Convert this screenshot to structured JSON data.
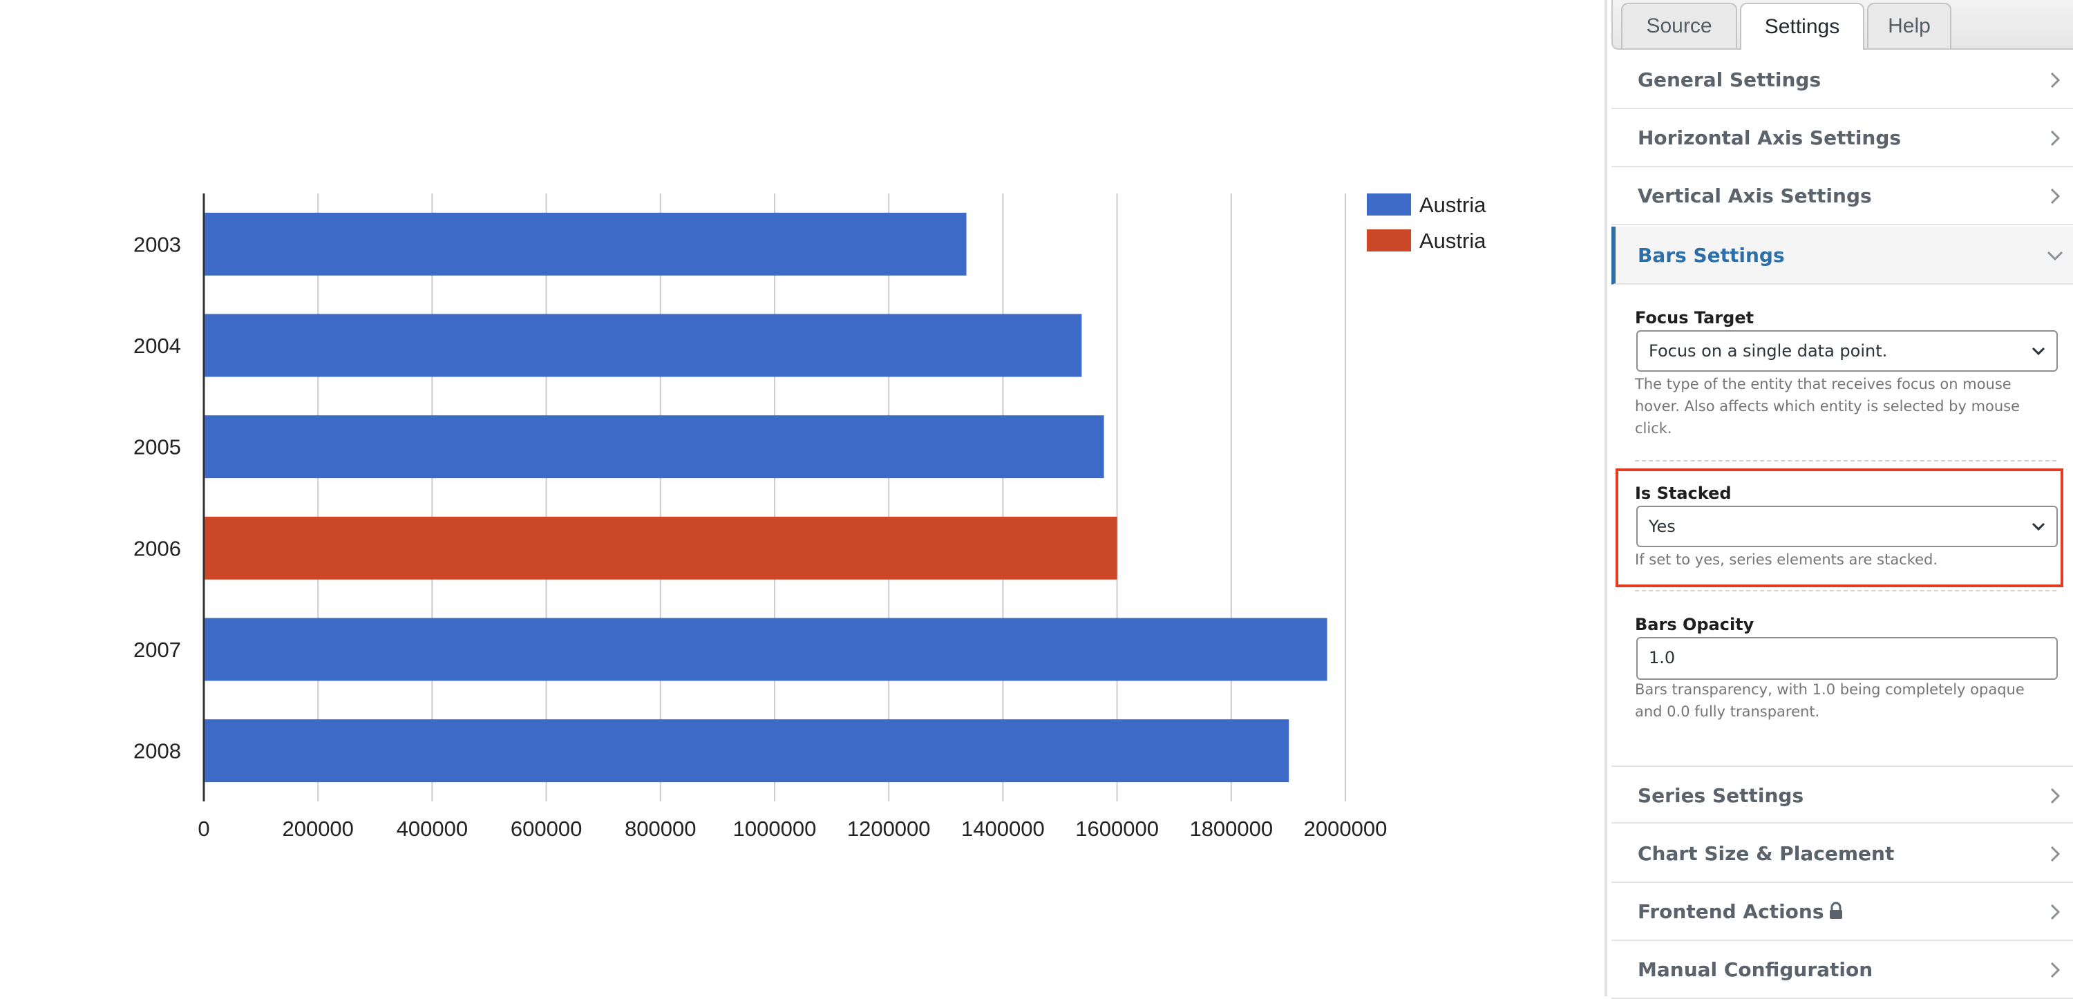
{
  "chart_data": {
    "type": "bar",
    "orientation": "horizontal",
    "categories": [
      "2003",
      "2004",
      "2005",
      "2006",
      "2007",
      "2008"
    ],
    "values": [
      1336000,
      1538000,
      1577000,
      1600000,
      1968000,
      1901000
    ],
    "bar_colors": [
      "#3c6ac6",
      "#3c6ac6",
      "#3c6ac6",
      "#cc4628",
      "#3c6ac6",
      "#3c6ac6"
    ],
    "xlim": [
      0,
      2000000
    ],
    "xticks": [
      "0",
      "200000",
      "400000",
      "600000",
      "800000",
      "1000000",
      "1200000",
      "1400000",
      "1600000",
      "1800000",
      "2000000"
    ],
    "grid": true,
    "legend_position": "right",
    "legend": [
      {
        "label": "Austria",
        "color": "#3c6ac6"
      },
      {
        "label": "Austria",
        "color": "#cc4628"
      }
    ]
  },
  "tabs": {
    "source": "Source",
    "settings": "Settings",
    "help": "Help",
    "active": "Settings"
  },
  "sections": {
    "general": "General Settings",
    "horizontal_axis": "Horizontal Axis Settings",
    "vertical_axis": "Vertical Axis Settings",
    "bars": "Bars Settings",
    "series": "Series Settings",
    "chart_size": "Chart Size & Placement",
    "frontend_actions": "Frontend Actions",
    "manual_config": "Manual Configuration"
  },
  "bars_settings": {
    "focus_target": {
      "label": "Focus Target",
      "value": "Focus on a single data point.",
      "help_line1": "The type of the entity that receives focus on mouse",
      "help_line2": "hover. Also affects which entity is selected by mouse",
      "help_line3": "click."
    },
    "is_stacked": {
      "label": "Is Stacked",
      "value": "Yes",
      "help": "If set to yes, series elements are stacked."
    },
    "bars_opacity": {
      "label": "Bars Opacity",
      "value": "1.0",
      "help_line1": "Bars transparency, with 1.0 being completely opaque",
      "help_line2": "and 0.0 fully transparent."
    }
  },
  "colors": {
    "accent": "#2b6ea8",
    "highlight": "#e03c26",
    "series_blue": "#3c6ac6",
    "series_red": "#cc4628"
  },
  "icons": {
    "chevron_collapsed": "chevron-right-icon",
    "chevron_expanded": "chevron-down-icon",
    "lock": "lock-icon",
    "select": "dropdown-arrow-icon"
  }
}
